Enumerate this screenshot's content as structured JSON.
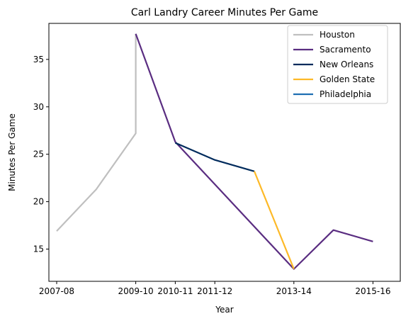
{
  "chart_data": {
    "type": "line",
    "title": "Carl Landry Career Minutes Per Game",
    "xlabel": "Year",
    "ylabel": "Minutes Per Game",
    "x_ticks": [
      "2007-08",
      "2009-10",
      "2010-11",
      "2011-12",
      "2013-14",
      "2015-16"
    ],
    "y_ticks": [
      15,
      20,
      25,
      30,
      35
    ],
    "ylim": [
      11.6,
      38.8
    ],
    "grid": false,
    "legend_position": "top-right",
    "series": [
      {
        "name": "Houston",
        "color": "#bfbfbf",
        "points": [
          [
            "2007-08",
            16.9
          ],
          [
            "2008-09",
            21.3
          ],
          [
            "2009-10",
            27.2
          ],
          [
            "2009-10",
            37.7
          ]
        ]
      },
      {
        "name": "Sacramento",
        "color": "#5a2d81",
        "points": [
          [
            "2009-10",
            37.7
          ],
          [
            "2010-11",
            26.3
          ],
          [
            "2013-14",
            12.9
          ],
          [
            "2014-15",
            17.0
          ],
          [
            "2015-16",
            15.8
          ]
        ]
      },
      {
        "name": "New Orleans",
        "color": "#002b5c",
        "points": [
          [
            "2010-11",
            26.2
          ],
          [
            "2011-12",
            24.4
          ],
          [
            "2012-13",
            23.2
          ]
        ]
      },
      {
        "name": "Golden State",
        "color": "#fdb927",
        "points": [
          [
            "2012-13",
            23.2
          ],
          [
            "2013-14",
            12.9
          ]
        ]
      },
      {
        "name": "Philadelphia",
        "color": "#1f6fb2",
        "points": []
      }
    ]
  }
}
